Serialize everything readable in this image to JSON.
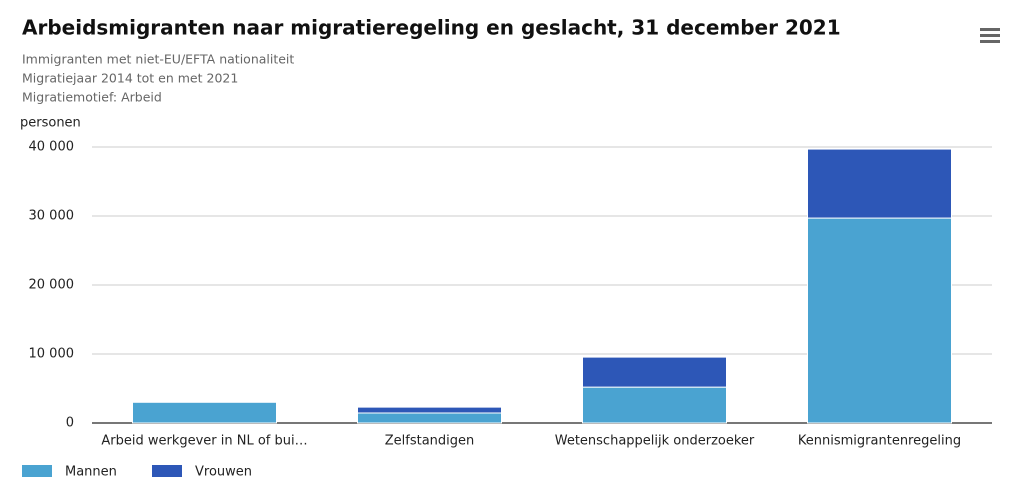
{
  "chart_data": {
    "type": "stacked_bar",
    "title": "Arbeidsmigranten naar migratieregeling en geslacht, 31 december 2021",
    "subtitle": [
      "Immigranten met niet-EU/EFTA nationaliteit",
      "Migratiejaar 2014 tot en met 2021",
      "Migratiemotief: Arbeid"
    ],
    "y_label": "personen",
    "categories": [
      "Arbeid werkgever in NL of bui…",
      "Zelfstandigen",
      "Wetenschappelijk onderzoeker",
      "Kennismigrantenregeling"
    ],
    "series": [
      {
        "name": "Mannen",
        "color": "#4aa3d1",
        "values": [
          3000,
          1450,
          5200,
          29700
        ]
      },
      {
        "name": "Vrouwen",
        "color": "#2d57b7",
        "values": [
          0,
          850,
          4350,
          10000
        ]
      }
    ],
    "ylim": [
      0,
      40000
    ],
    "yticks": [
      0,
      {
        "value": 10000,
        "label": "10 000"
      },
      {
        "value": 20000,
        "label": "20 000"
      },
      {
        "value": 30000,
        "label": "30 000"
      },
      {
        "value": 40000,
        "label": "40 000"
      }
    ],
    "grid": true
  }
}
